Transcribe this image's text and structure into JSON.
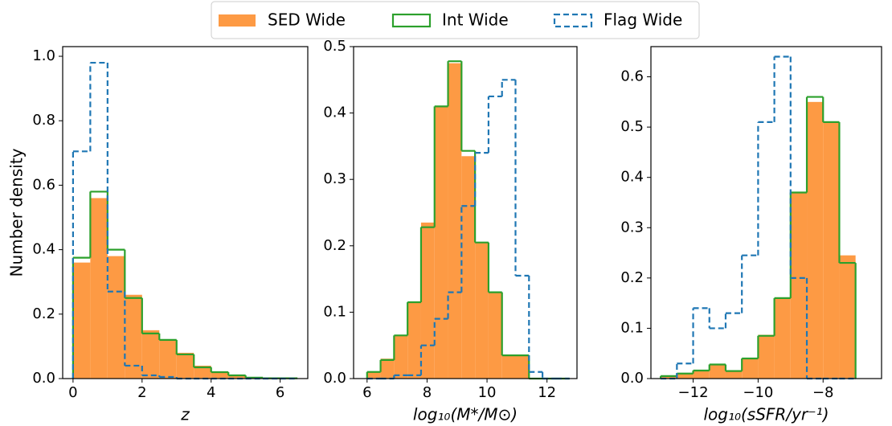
{
  "chart_data": [
    {
      "type": "histogram",
      "ylabel": "Number density",
      "xlabel": "z",
      "bins": [
        0,
        0.5,
        1,
        1.5,
        2,
        2.5,
        3,
        3.5,
        4,
        4.5,
        5,
        5.5,
        6,
        6.5
      ],
      "series": [
        {
          "name": "SED Wide",
          "color": "#fd9a44",
          "histtype": "bar",
          "values": [
            0.36,
            0.56,
            0.38,
            0.26,
            0.15,
            0.12,
            0.08,
            0.04,
            0.02,
            0.01,
            0.002,
            0.001,
            0.0005
          ]
        },
        {
          "name": "Int Wide",
          "color": "#2ca02c",
          "histtype": "step",
          "linestyle": "solid",
          "values": [
            0.375,
            0.58,
            0.4,
            0.25,
            0.14,
            0.12,
            0.075,
            0.035,
            0.02,
            0.01,
            0.003,
            0.001,
            0.001
          ]
        },
        {
          "name": "Flag Wide",
          "color": "#1f77b4",
          "histtype": "step",
          "linestyle": "dashed",
          "values": [
            0.705,
            0.98,
            0.27,
            0.04,
            0.01,
            0.005,
            0,
            0,
            0,
            0,
            0,
            0,
            0
          ]
        }
      ],
      "xlim": [
        -0.3,
        6.8
      ],
      "xticks": [
        0,
        2,
        4,
        6
      ],
      "ylim": [
        0,
        1.03
      ],
      "yticks": [
        {
          "value": 0,
          "label": "0.0"
        },
        0.2,
        0.4,
        0.6,
        0.8,
        {
          "value": 1,
          "label": "1.0"
        }
      ]
    },
    {
      "type": "histogram",
      "xlabel": "log₁₀(M*/M⊙)",
      "bins": [
        6.0,
        6.45,
        6.9,
        7.35,
        7.8,
        8.25,
        8.7,
        9.15,
        9.6,
        10.05,
        10.5,
        10.95,
        11.4,
        11.85,
        12.3,
        12.75
      ],
      "series": [
        {
          "name": "SED Wide",
          "color": "#fd9a44",
          "histtype": "bar",
          "values": [
            0.01,
            0.03,
            0.065,
            0.115,
            0.235,
            0.41,
            0.475,
            0.335,
            0.205,
            0.13,
            0.035,
            0.035,
            0,
            0,
            0
          ]
        },
        {
          "name": "Int Wide",
          "color": "#2ca02c",
          "histtype": "step",
          "linestyle": "solid",
          "values": [
            0.01,
            0.028,
            0.065,
            0.115,
            0.228,
            0.41,
            0.478,
            0.343,
            0.205,
            0.13,
            0.035,
            0.035,
            0,
            0,
            0
          ]
        },
        {
          "name": "Flag Wide",
          "color": "#1f77b4",
          "histtype": "step",
          "linestyle": "dashed",
          "values": [
            0,
            0,
            0.005,
            0.005,
            0.05,
            0.09,
            0.13,
            0.26,
            0.34,
            0.425,
            0.45,
            0.155,
            0.01,
            0,
            0
          ]
        }
      ],
      "xlim": [
        5.55,
        13.0
      ],
      "xticks": [
        6,
        8,
        10,
        12
      ],
      "ylim": [
        0,
        0.5
      ],
      "yticks": [
        {
          "value": 0,
          "label": "0.0"
        },
        0.1,
        0.2,
        0.3,
        0.4,
        0.5
      ]
    },
    {
      "type": "histogram",
      "xlabel": "log₁₀(sSFR/yr⁻¹)",
      "bins": [
        -13,
        -12.5,
        -12,
        -11.5,
        -11,
        -10.5,
        -10,
        -9.5,
        -9,
        -8.5,
        -8,
        -7.5,
        -7
      ],
      "series": [
        {
          "name": "SED Wide",
          "color": "#fd9a44",
          "histtype": "bar",
          "values": [
            0.005,
            0.01,
            0.015,
            0.028,
            0.015,
            0.04,
            0.087,
            0.16,
            0.37,
            0.55,
            0.51,
            0.245
          ]
        },
        {
          "name": "Int Wide",
          "color": "#2ca02c",
          "histtype": "step",
          "linestyle": "solid",
          "values": [
            0.005,
            0.01,
            0.016,
            0.028,
            0.015,
            0.04,
            0.085,
            0.16,
            0.37,
            0.56,
            0.51,
            0.23
          ]
        },
        {
          "name": "Flag Wide",
          "color": "#1f77b4",
          "histtype": "step",
          "linestyle": "dashed",
          "values": [
            0,
            0.03,
            0.14,
            0.1,
            0.13,
            0.245,
            0.51,
            0.64,
            0.2,
            0,
            0,
            0
          ]
        }
      ],
      "xlim": [
        -13.3,
        -6.2
      ],
      "xticks": [
        {
          "value": -12,
          "label": "−12"
        },
        {
          "value": -10,
          "label": "−10"
        },
        {
          "value": -8,
          "label": "−8"
        }
      ],
      "ylim": [
        0,
        0.66
      ],
      "yticks": [
        {
          "value": 0,
          "label": "0.0"
        },
        0.1,
        0.2,
        0.3,
        0.4,
        0.5,
        0.6
      ]
    }
  ]
}
